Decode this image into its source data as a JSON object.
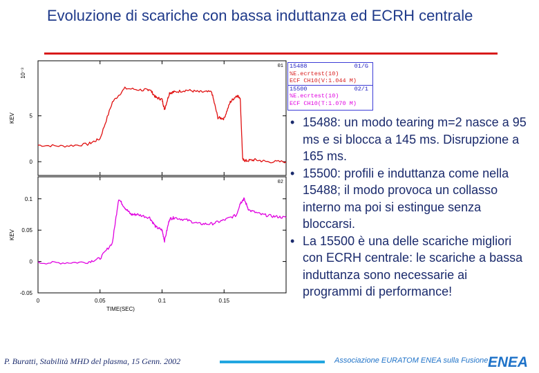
{
  "title": "Evoluzione di scariche con bassa induttanza ed ECRH centrale",
  "legend": {
    "row1_shot": "15488",
    "row1_tag": "01/G",
    "row2": "%E.ecrtest(10)",
    "row3": "ECF CH10(V:1.044 M)",
    "row4_shot": "15500",
    "row4_tag": "02/1",
    "row5": "%E.ecrtest(10)",
    "row6": "ECF CH10(T:1.070 M)"
  },
  "bullets": [
    "15488: un modo tearing m=2 nasce a 95 ms e si blocca a 145 ms. Disrupzione a 165 ms.",
    "15500: profili e induttanza come nella 15488; il modo provoca un collasso interno ma poi si estingue senza bloccarsi.",
    "La 15500 è una delle scariche migliori con ECRH centrale: le scariche a bassa induttanza sono necessarie ai programmi di performance!"
  ],
  "footer": {
    "left": "P. Buratti, Stabilità MHD del plasma, 15 Genn. 2002",
    "right": "Associazione EURATOM ENEA sulla Fusione",
    "logo": "ENEA"
  },
  "chart_data": [
    {
      "type": "line",
      "panel_tag": "01",
      "ylabel": "KEV",
      "yscale_label": "10⁻³",
      "yticks": [
        "0",
        "5"
      ],
      "ylim": [
        -1.5,
        11
      ],
      "xlim": [
        0,
        0.2
      ],
      "series": [
        {
          "name": "15488",
          "color": "#e01010",
          "x": [
            0.0,
            0.02,
            0.04,
            0.05,
            0.06,
            0.07,
            0.085,
            0.09,
            0.095,
            0.1,
            0.102,
            0.106,
            0.11,
            0.12,
            0.13,
            0.14,
            0.145,
            0.15,
            0.155,
            0.16,
            0.163,
            0.165,
            0.168,
            0.175,
            0.185,
            0.2
          ],
          "values": [
            1.8,
            1.7,
            1.9,
            2.5,
            6.5,
            8.0,
            7.8,
            7.9,
            7.0,
            6.8,
            5.7,
            7.5,
            7.6,
            7.8,
            7.6,
            7.6,
            4.8,
            4.7,
            6.5,
            7.2,
            7.0,
            0.2,
            0.1,
            0.2,
            0.0,
            0.0
          ]
        }
      ]
    },
    {
      "type": "line",
      "panel_tag": "02",
      "ylabel": "KEV",
      "xlabel": "TIME(SEC)",
      "yticks": [
        "-0.05",
        "0",
        "0.05",
        "0.1"
      ],
      "xticks": [
        "0",
        "0.05",
        "0.1",
        "0.15"
      ],
      "ylim": [
        -0.05,
        0.135
      ],
      "xlim": [
        0,
        0.2
      ],
      "series": [
        {
          "name": "15500",
          "color": "#e000e0",
          "x": [
            0.0,
            0.02,
            0.04,
            0.05,
            0.06,
            0.065,
            0.07,
            0.075,
            0.08,
            0.09,
            0.095,
            0.1,
            0.102,
            0.106,
            0.11,
            0.12,
            0.13,
            0.14,
            0.15,
            0.16,
            0.163,
            0.166,
            0.17,
            0.18,
            0.19,
            0.2
          ],
          "values": [
            -0.002,
            -0.002,
            -0.001,
            0.005,
            0.03,
            0.1,
            0.086,
            0.075,
            0.075,
            0.07,
            0.055,
            0.05,
            0.033,
            0.068,
            0.07,
            0.066,
            0.06,
            0.06,
            0.066,
            0.074,
            0.093,
            0.1,
            0.082,
            0.075,
            0.072,
            0.07
          ]
        }
      ]
    }
  ]
}
